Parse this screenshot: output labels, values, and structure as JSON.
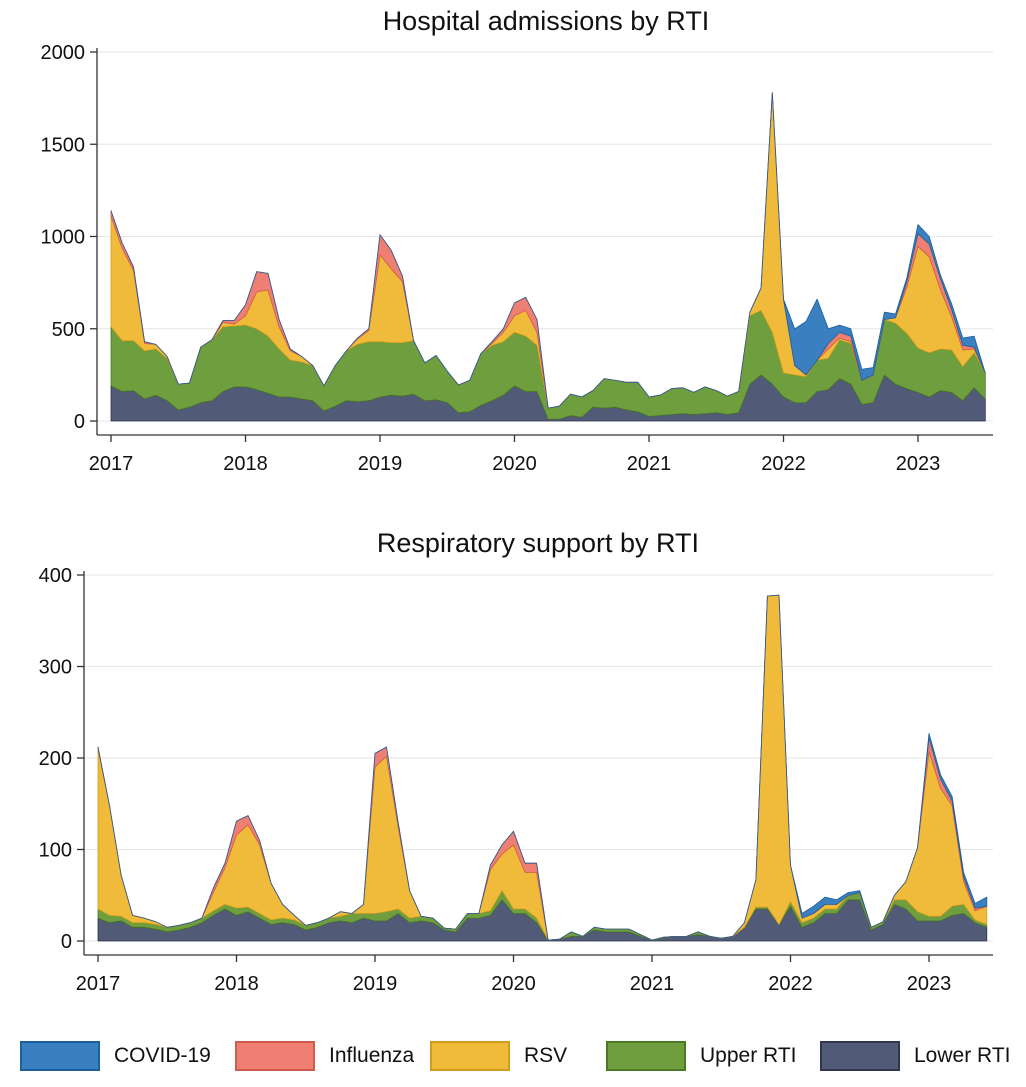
{
  "legend": [
    "COVID-19",
    "Influenza",
    "RSV",
    "Upper RTI",
    "Lower RTI"
  ],
  "colors": {
    "COVID-19": "#3a80c0",
    "Influenza": "#ee7f72",
    "RSV": "#f0bb3a",
    "Upper RTI": "#6f9e3e",
    "Lower RTI": "#515a76",
    "COVID-19_edge": "#1d5f9a",
    "Influenza_edge": "#d05a4d",
    "RSV_edge": "#d39d1c",
    "Upper RTI_edge": "#4c7a24",
    "Lower RTI_edge": "#2f3550"
  },
  "chart_data": [
    {
      "type": "area",
      "stacked": true,
      "title": "Hospital admissions by RTI",
      "xlabel": "",
      "ylabel": "",
      "xticks": [
        2017,
        2018,
        2019,
        2020,
        2021,
        2022,
        2023
      ],
      "xlim": [
        2017,
        2023.58
      ],
      "ylim": [
        0,
        2000
      ],
      "yticks": [
        0,
        500,
        1000,
        1500,
        2000
      ],
      "grid": true,
      "x": [
        2017.0,
        2017.083,
        2017.167,
        2017.25,
        2017.333,
        2017.417,
        2017.5,
        2017.583,
        2017.667,
        2017.75,
        2017.833,
        2017.917,
        2018.0,
        2018.083,
        2018.167,
        2018.25,
        2018.333,
        2018.417,
        2018.5,
        2018.583,
        2018.667,
        2018.75,
        2018.833,
        2018.917,
        2019.0,
        2019.083,
        2019.167,
        2019.25,
        2019.333,
        2019.417,
        2019.5,
        2019.583,
        2019.667,
        2019.75,
        2019.833,
        2019.917,
        2020.0,
        2020.083,
        2020.167,
        2020.25,
        2020.333,
        2020.417,
        2020.5,
        2020.583,
        2020.667,
        2020.75,
        2020.833,
        2020.917,
        2021.0,
        2021.083,
        2021.167,
        2021.25,
        2021.333,
        2021.417,
        2021.5,
        2021.583,
        2021.667,
        2021.75,
        2021.833,
        2021.917,
        2022.0,
        2022.083,
        2022.167,
        2022.25,
        2022.333,
        2022.417,
        2022.5,
        2022.583,
        2022.667,
        2022.75,
        2022.833,
        2022.917,
        2023.0,
        2023.083,
        2023.167,
        2023.25,
        2023.333,
        2023.417,
        2023.5
      ],
      "series": [
        {
          "name": "Lower RTI",
          "values": [
            190,
            160,
            165,
            120,
            140,
            110,
            60,
            75,
            100,
            110,
            160,
            185,
            185,
            170,
            150,
            130,
            130,
            120,
            110,
            55,
            80,
            110,
            105,
            110,
            130,
            140,
            135,
            145,
            110,
            115,
            100,
            45,
            50,
            85,
            110,
            140,
            190,
            160,
            160,
            10,
            10,
            30,
            20,
            75,
            70,
            75,
            60,
            50,
            25,
            30,
            35,
            40,
            35,
            40,
            45,
            35,
            45,
            200,
            250,
            200,
            130,
            100,
            100,
            160,
            170,
            230,
            200,
            90,
            100,
            250,
            200,
            175,
            155,
            130,
            165,
            155,
            110,
            180,
            120
          ]
        },
        {
          "name": "Upper RTI",
          "values": [
            320,
            275,
            270,
            260,
            250,
            230,
            140,
            130,
            300,
            330,
            350,
            330,
            335,
            330,
            310,
            260,
            200,
            200,
            190,
            135,
            220,
            270,
            310,
            320,
            300,
            285,
            290,
            290,
            205,
            240,
            170,
            150,
            170,
            280,
            300,
            290,
            290,
            300,
            250,
            60,
            70,
            115,
            110,
            90,
            160,
            145,
            150,
            160,
            105,
            110,
            140,
            140,
            120,
            145,
            120,
            100,
            115,
            370,
            350,
            280,
            130,
            150,
            140,
            170,
            170,
            210,
            220,
            130,
            150,
            300,
            330,
            300,
            240,
            240,
            225,
            230,
            185,
            190,
            140
          ]
        },
        {
          "name": "RSV",
          "values": [
            600,
            500,
            380,
            40,
            25,
            10,
            0,
            0,
            0,
            0,
            25,
            10,
            50,
            200,
            250,
            120,
            50,
            30,
            0,
            0,
            0,
            0,
            30,
            60,
            470,
            400,
            330,
            0,
            0,
            0,
            0,
            0,
            0,
            0,
            10,
            50,
            90,
            140,
            70,
            0,
            0,
            0,
            0,
            0,
            0,
            0,
            0,
            0,
            0,
            0,
            0,
            0,
            0,
            0,
            0,
            0,
            0,
            20,
            120,
            1300,
            400,
            50,
            10,
            0,
            50,
            10,
            10,
            0,
            0,
            0,
            30,
            250,
            550,
            520,
            320,
            180,
            90,
            20,
            0
          ]
        },
        {
          "name": "Influenza",
          "values": [
            30,
            30,
            20,
            10,
            0,
            0,
            0,
            0,
            0,
            0,
            10,
            20,
            60,
            110,
            90,
            40,
            10,
            0,
            0,
            0,
            0,
            0,
            5,
            10,
            110,
            100,
            30,
            0,
            0,
            0,
            0,
            0,
            0,
            0,
            10,
            20,
            70,
            70,
            70,
            0,
            0,
            0,
            0,
            0,
            0,
            0,
            0,
            0,
            0,
            0,
            0,
            0,
            0,
            0,
            0,
            0,
            0,
            0,
            0,
            0,
            0,
            0,
            0,
            0,
            30,
            30,
            30,
            0,
            0,
            0,
            0,
            30,
            70,
            70,
            60,
            40,
            25,
            10,
            0
          ]
        },
        {
          "name": "COVID-19",
          "values": [
            0,
            0,
            0,
            0,
            0,
            0,
            0,
            0,
            0,
            0,
            0,
            0,
            0,
            0,
            0,
            0,
            0,
            0,
            0,
            0,
            0,
            0,
            0,
            0,
            0,
            0,
            0,
            0,
            0,
            0,
            0,
            0,
            0,
            0,
            0,
            0,
            0,
            0,
            0,
            0,
            0,
            0,
            0,
            0,
            0,
            0,
            0,
            0,
            0,
            0,
            0,
            0,
            0,
            0,
            0,
            0,
            0,
            0,
            0,
            0,
            0,
            200,
            290,
            330,
            80,
            40,
            40,
            60,
            40,
            40,
            20,
            20,
            50,
            40,
            20,
            30,
            40,
            60,
            0
          ]
        }
      ]
    },
    {
      "type": "area",
      "stacked": true,
      "title": "Respiratory support by RTI",
      "xlabel": "",
      "ylabel": "",
      "xticks": [
        2017,
        2018,
        2019,
        2020,
        2021,
        2022,
        2023
      ],
      "xlim": [
        2017,
        2023.42
      ],
      "ylim": [
        0,
        400
      ],
      "yticks": [
        0,
        100,
        200,
        300,
        400
      ],
      "grid": true,
      "x": [
        2017.0,
        2017.083,
        2017.167,
        2017.25,
        2017.333,
        2017.417,
        2017.5,
        2017.583,
        2017.667,
        2017.75,
        2017.833,
        2017.917,
        2018.0,
        2018.083,
        2018.167,
        2018.25,
        2018.333,
        2018.417,
        2018.5,
        2018.583,
        2018.667,
        2018.75,
        2018.833,
        2018.917,
        2019.0,
        2019.083,
        2019.167,
        2019.25,
        2019.333,
        2019.417,
        2019.5,
        2019.583,
        2019.667,
        2019.75,
        2019.833,
        2019.917,
        2020.0,
        2020.083,
        2020.167,
        2020.25,
        2020.333,
        2020.417,
        2020.5,
        2020.583,
        2020.667,
        2020.75,
        2020.833,
        2020.917,
        2021.0,
        2021.083,
        2021.167,
        2021.25,
        2021.333,
        2021.417,
        2021.5,
        2021.583,
        2021.667,
        2021.75,
        2021.833,
        2021.917,
        2022.0,
        2022.083,
        2022.167,
        2022.25,
        2022.333,
        2022.417,
        2022.5,
        2022.583,
        2022.667,
        2022.75,
        2022.833,
        2022.917,
        2023.0,
        2023.083,
        2023.167,
        2023.25,
        2023.333,
        2023.417
      ],
      "series": [
        {
          "name": "Lower RTI",
          "values": [
            25,
            20,
            22,
            15,
            15,
            13,
            10,
            12,
            15,
            20,
            28,
            35,
            28,
            32,
            25,
            18,
            20,
            18,
            12,
            15,
            20,
            22,
            20,
            25,
            22,
            22,
            30,
            20,
            22,
            20,
            12,
            10,
            25,
            25,
            28,
            45,
            30,
            30,
            20,
            1,
            2,
            5,
            5,
            12,
            10,
            10,
            10,
            5,
            1,
            3,
            5,
            5,
            7,
            5,
            3,
            5,
            15,
            35,
            35,
            18,
            38,
            15,
            20,
            30,
            30,
            45,
            45,
            12,
            18,
            40,
            35,
            22,
            22,
            22,
            28,
            30,
            20,
            15
          ]
        },
        {
          "name": "Upper RTI",
          "values": [
            10,
            8,
            5,
            5,
            5,
            5,
            5,
            5,
            5,
            5,
            5,
            5,
            8,
            5,
            5,
            5,
            5,
            5,
            5,
            5,
            5,
            5,
            10,
            5,
            8,
            10,
            5,
            5,
            5,
            5,
            2,
            3,
            5,
            5,
            5,
            10,
            5,
            5,
            5,
            0,
            0,
            5,
            0,
            3,
            3,
            3,
            3,
            2,
            0,
            1,
            0,
            0,
            3,
            0,
            0,
            0,
            0,
            2,
            2,
            0,
            5,
            5,
            5,
            5,
            5,
            5,
            8,
            3,
            3,
            5,
            10,
            10,
            5,
            5,
            10,
            10,
            3,
            3
          ]
        },
        {
          "name": "RSV",
          "values": [
            175,
            120,
            45,
            8,
            5,
            3,
            0,
            0,
            0,
            0,
            20,
            40,
            80,
            90,
            75,
            40,
            15,
            5,
            0,
            0,
            0,
            5,
            0,
            10,
            160,
            170,
            90,
            30,
            0,
            0,
            0,
            0,
            0,
            0,
            45,
            40,
            70,
            40,
            50,
            0,
            0,
            0,
            0,
            0,
            0,
            0,
            0,
            0,
            0,
            0,
            0,
            0,
            0,
            0,
            0,
            0,
            5,
            30,
            340,
            360,
            40,
            5,
            5,
            5,
            5,
            0,
            0,
            0,
            0,
            5,
            20,
            70,
            180,
            140,
            110,
            25,
            10,
            20
          ]
        },
        {
          "name": "Influenza",
          "values": [
            2,
            0,
            0,
            0,
            0,
            0,
            0,
            0,
            0,
            0,
            5,
            5,
            15,
            10,
            5,
            0,
            0,
            0,
            0,
            0,
            0,
            0,
            0,
            0,
            15,
            10,
            5,
            0,
            0,
            0,
            0,
            0,
            0,
            0,
            5,
            10,
            15,
            10,
            10,
            0,
            0,
            0,
            0,
            0,
            0,
            0,
            0,
            0,
            0,
            0,
            0,
            0,
            0,
            0,
            0,
            0,
            0,
            0,
            0,
            0,
            0,
            0,
            0,
            0,
            0,
            0,
            0,
            0,
            0,
            0,
            0,
            0,
            15,
            10,
            5,
            5,
            3,
            0
          ]
        },
        {
          "name": "COVID-19",
          "values": [
            0,
            0,
            0,
            0,
            0,
            0,
            0,
            0,
            0,
            0,
            0,
            0,
            0,
            0,
            0,
            0,
            0,
            0,
            0,
            0,
            0,
            0,
            0,
            0,
            0,
            0,
            0,
            0,
            0,
            0,
            0,
            0,
            0,
            0,
            0,
            0,
            0,
            0,
            0,
            0,
            0,
            0,
            0,
            0,
            0,
            0,
            0,
            0,
            0,
            0,
            0,
            0,
            0,
            0,
            0,
            0,
            0,
            0,
            0,
            0,
            0,
            5,
            8,
            8,
            5,
            3,
            2,
            0,
            0,
            0,
            0,
            0,
            5,
            5,
            5,
            5,
            5,
            10
          ]
        }
      ]
    }
  ]
}
